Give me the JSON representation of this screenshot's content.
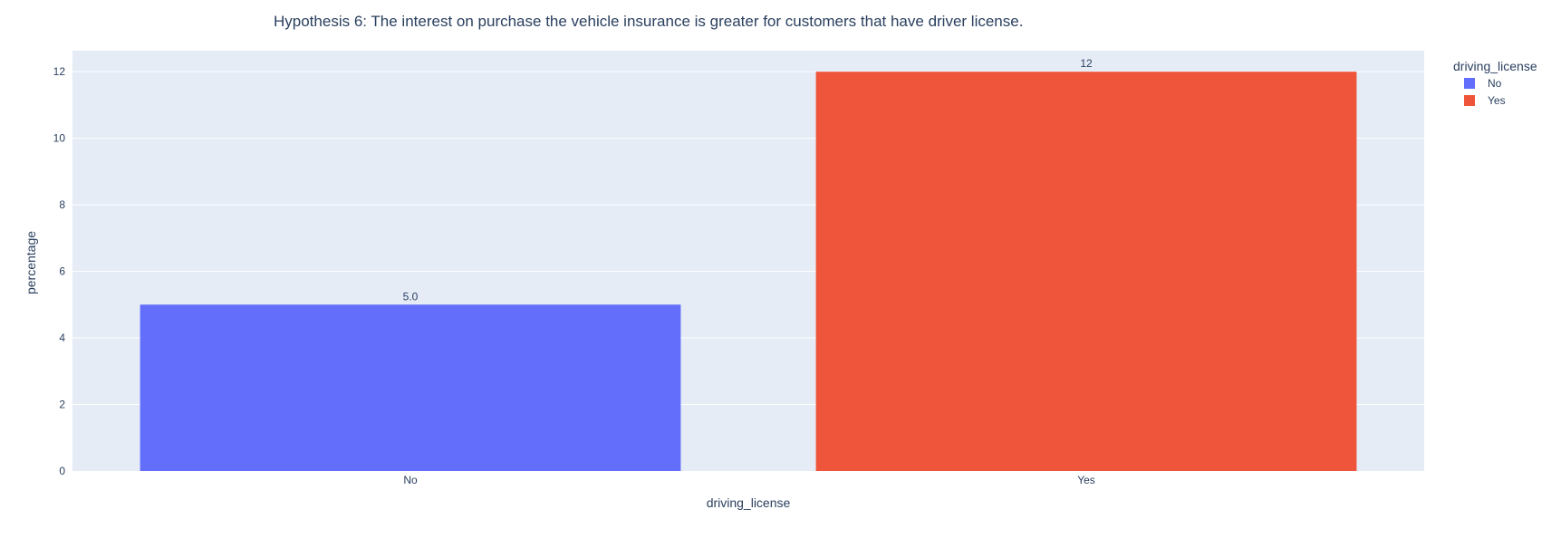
{
  "chart_data": {
    "type": "bar",
    "title": "Hypothesis 6: The interest on purchase the vehicle insurance is greater for customers that have driver license.",
    "xlabel": "driving_license",
    "ylabel": "percentage",
    "categories": [
      "No",
      "Yes"
    ],
    "values": [
      5.0,
      12
    ],
    "data_labels": [
      "5.0",
      "12"
    ],
    "bar_colors": [
      "#636efa",
      "#ef553b"
    ],
    "ylim": [
      0,
      12.63
    ],
    "yticks": [
      0,
      2,
      4,
      6,
      8,
      10,
      12
    ],
    "ytick_labels": [
      "0",
      "2",
      "4",
      "6",
      "8",
      "10",
      "12"
    ],
    "grid": true,
    "plot_background": "#e5ecf6",
    "legend": {
      "title": "driving_license",
      "placement": "top-right",
      "entries": [
        {
          "name": "No",
          "color": "#636efa"
        },
        {
          "name": "Yes",
          "color": "#ef553b"
        }
      ]
    }
  }
}
